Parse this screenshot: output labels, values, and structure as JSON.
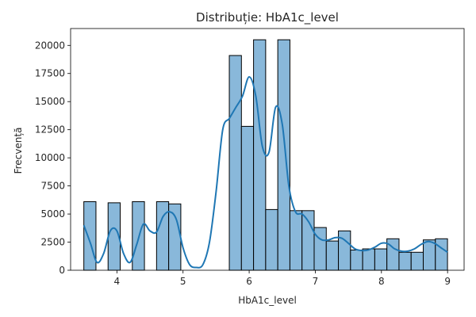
{
  "chart_data": {
    "type": "histogram",
    "title": "Distribuție: HbA1c_level",
    "xlabel": "HbA1c_level",
    "ylabel": "Frecvență",
    "xlim": [
      3.3,
      9.25
    ],
    "ylim": [
      0,
      21500
    ],
    "xticks": [
      4,
      5,
      6,
      7,
      8,
      9
    ],
    "yticks": [
      0,
      2500,
      5000,
      7500,
      10000,
      12500,
      15000,
      17500,
      20000
    ],
    "bin_start": 3.5,
    "bin_width": 0.1833,
    "bins": 30,
    "values": [
      6100,
      0,
      6000,
      0,
      6100,
      0,
      6100,
      5900,
      0,
      0,
      0,
      0,
      19100,
      12800,
      20500,
      5400,
      20500,
      5300,
      5300,
      3800,
      2600,
      3500,
      1800,
      1900,
      1900,
      2800,
      1600,
      1600,
      2700,
      2800
    ],
    "kde": {
      "x": [
        3.5,
        3.6,
        3.7,
        3.8,
        3.9,
        4.0,
        4.1,
        4.2,
        4.3,
        4.4,
        4.5,
        4.6,
        4.7,
        4.8,
        4.9,
        5.0,
        5.1,
        5.2,
        5.3,
        5.4,
        5.5,
        5.6,
        5.7,
        5.8,
        5.9,
        6.0,
        6.1,
        6.2,
        6.3,
        6.4,
        6.5,
        6.6,
        6.7,
        6.8,
        6.9,
        7.0,
        7.1,
        7.2,
        7.3,
        7.4,
        7.5,
        7.6,
        7.7,
        7.8,
        7.9,
        8.0,
        8.1,
        8.2,
        8.3,
        8.4,
        8.5,
        8.6,
        8.7,
        8.8,
        8.9,
        9.0
      ],
      "y": [
        4000,
        2400,
        700,
        1500,
        3500,
        3500,
        1500,
        700,
        2300,
        4100,
        3500,
        3400,
        4800,
        5200,
        4500,
        2000,
        500,
        250,
        500,
        2500,
        7000,
        12500,
        13500,
        14500,
        15500,
        17200,
        15500,
        11000,
        10500,
        14500,
        13000,
        7500,
        5200,
        5000,
        4300,
        3200,
        2700,
        2700,
        2900,
        2850,
        2400,
        1900,
        1750,
        1800,
        2050,
        2400,
        2350,
        1900,
        1700,
        1700,
        1900,
        2300,
        2550,
        2400,
        2000,
        1600
      ]
    },
    "colors": {
      "bar_fill": "#89b8da",
      "bar_edge": "#000000",
      "kde_line": "#1f77b4"
    },
    "grid": false,
    "legend": false
  }
}
